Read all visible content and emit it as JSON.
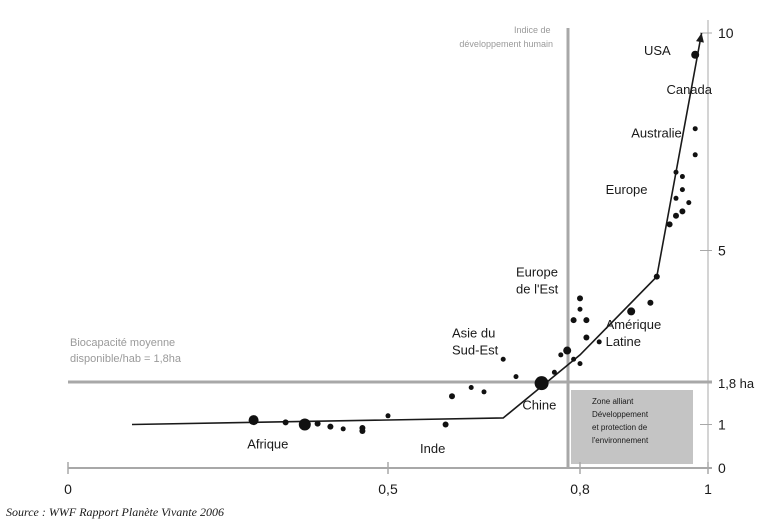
{
  "source": "Source : WWF  Rapport Planète Vivante 2006",
  "chart_data": {
    "type": "scatter",
    "x_label": "Indice de développement humain",
    "x_ticks": [
      "0",
      "0,5",
      "0,8",
      "1"
    ],
    "x_lim": [
      0,
      1
    ],
    "y_ticks": [
      "0",
      "1",
      "5",
      "10"
    ],
    "y_lim": [
      0,
      10
    ],
    "reference_lines": {
      "vertical": {
        "x": 0.8
      },
      "horizontal": {
        "y": 1.8,
        "label": "Biocapacité moyenne disponible/hab = 1,8ha",
        "tick_label": "1,8 ha"
      }
    },
    "zone_label": "Zone alliant Développement et protection de l'environnement",
    "trend_line": [
      [
        0.1,
        1.0
      ],
      [
        0.68,
        1.15
      ],
      [
        0.8,
        2.6
      ],
      [
        0.92,
        4.4
      ],
      [
        0.99,
        10.0
      ]
    ],
    "points": [
      {
        "x": 0.29,
        "y": 1.1,
        "r": 5
      },
      {
        "x": 0.34,
        "y": 1.05,
        "r": 3
      },
      {
        "x": 0.37,
        "y": 1.0,
        "r": 6
      },
      {
        "x": 0.39,
        "y": 1.02,
        "r": 3
      },
      {
        "x": 0.41,
        "y": 0.95,
        "r": 3
      },
      {
        "x": 0.43,
        "y": 0.9,
        "r": 2.5
      },
      {
        "x": 0.46,
        "y": 0.92,
        "r": 3
      },
      {
        "x": 0.46,
        "y": 0.85,
        "r": 3
      },
      {
        "x": 0.5,
        "y": 1.2,
        "r": 2.5
      },
      {
        "x": 0.59,
        "y": 1.0,
        "r": 3
      },
      {
        "x": 0.6,
        "y": 1.65,
        "r": 3
      },
      {
        "x": 0.63,
        "y": 1.85,
        "r": 2.5
      },
      {
        "x": 0.65,
        "y": 1.75,
        "r": 2.5
      },
      {
        "x": 0.68,
        "y": 2.5,
        "r": 2.5
      },
      {
        "x": 0.7,
        "y": 2.1,
        "r": 2.5
      },
      {
        "x": 0.74,
        "y": 1.95,
        "r": 7
      },
      {
        "x": 0.76,
        "y": 2.2,
        "r": 2.5
      },
      {
        "x": 0.77,
        "y": 2.6,
        "r": 2.5
      },
      {
        "x": 0.78,
        "y": 2.7,
        "r": 4
      },
      {
        "x": 0.79,
        "y": 2.5,
        "r": 2.5
      },
      {
        "x": 0.8,
        "y": 2.4,
        "r": 2.5
      },
      {
        "x": 0.79,
        "y": 3.4,
        "r": 3
      },
      {
        "x": 0.8,
        "y": 3.65,
        "r": 2.5
      },
      {
        "x": 0.8,
        "y": 3.9,
        "r": 3
      },
      {
        "x": 0.81,
        "y": 3.4,
        "r": 3
      },
      {
        "x": 0.81,
        "y": 3.0,
        "r": 3
      },
      {
        "x": 0.83,
        "y": 2.9,
        "r": 2.5
      },
      {
        "x": 0.88,
        "y": 3.6,
        "r": 4
      },
      {
        "x": 0.91,
        "y": 3.8,
        "r": 3
      },
      {
        "x": 0.92,
        "y": 4.4,
        "r": 3
      },
      {
        "x": 0.94,
        "y": 5.6,
        "r": 3
      },
      {
        "x": 0.95,
        "y": 5.8,
        "r": 3
      },
      {
        "x": 0.96,
        "y": 5.9,
        "r": 3
      },
      {
        "x": 0.95,
        "y": 6.2,
        "r": 2.5
      },
      {
        "x": 0.96,
        "y": 6.4,
        "r": 2.5
      },
      {
        "x": 0.95,
        "y": 6.8,
        "r": 2.5
      },
      {
        "x": 0.97,
        "y": 6.1,
        "r": 2.5
      },
      {
        "x": 0.96,
        "y": 6.7,
        "r": 2.5
      },
      {
        "x": 0.98,
        "y": 7.2,
        "r": 2.5
      },
      {
        "x": 0.98,
        "y": 7.8,
        "r": 2.5
      },
      {
        "x": 0.98,
        "y": 9.5,
        "r": 4
      }
    ],
    "annotations": [
      {
        "text": "USA",
        "x": 0.9,
        "y": 9.5
      },
      {
        "text": "Canada",
        "x": 0.99,
        "y": 8.6
      },
      {
        "text": "Australie",
        "x": 0.88,
        "y": 7.6
      },
      {
        "text": "Europe",
        "x": 0.84,
        "y": 6.3
      },
      {
        "text": "Europe de l'Est",
        "x": 0.7,
        "y": 4.4
      },
      {
        "text": "Asie du Sud-Est",
        "x": 0.6,
        "y": 3.0
      },
      {
        "text": "Amérique Latine",
        "x": 0.84,
        "y": 3.2
      },
      {
        "text": "Chine",
        "x": 0.71,
        "y": 1.35
      },
      {
        "text": "Afrique",
        "x": 0.28,
        "y": 0.45
      },
      {
        "text": "Inde",
        "x": 0.55,
        "y": 0.35
      }
    ]
  }
}
